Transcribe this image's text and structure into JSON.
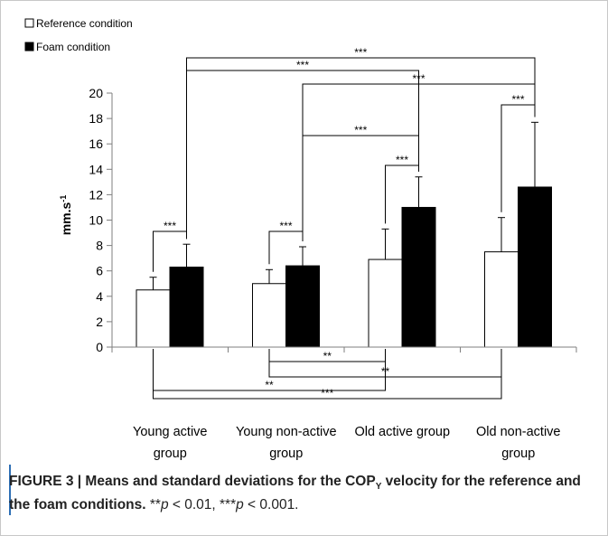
{
  "chart_data": {
    "type": "bar",
    "title": "",
    "xlabel": "",
    "ylabel": "mm.s",
    "ylabel_sup": "-1",
    "ylim": [
      0,
      20
    ],
    "yticks": [
      "0",
      "2",
      "4",
      "6",
      "8",
      "10",
      "12",
      "14",
      "16",
      "18",
      "20"
    ],
    "grid": false,
    "legend_position": "top-left",
    "categories": [
      [
        "Young active",
        "group"
      ],
      [
        "Young non-active",
        "group"
      ],
      [
        "Old active group"
      ],
      [
        "Old non-active",
        "group"
      ]
    ],
    "series": [
      {
        "name": "Reference condition",
        "fill": "#ffffff",
        "values": [
          4.5,
          5.0,
          6.9,
          7.5
        ],
        "sd": [
          1.0,
          1.1,
          2.4,
          2.7
        ]
      },
      {
        "name": "Foam condition",
        "fill": "#000000",
        "values": [
          6.3,
          6.4,
          11.0,
          12.6
        ],
        "sd": [
          1.8,
          1.5,
          2.4,
          5.1
        ]
      }
    ],
    "significance_above": [
      {
        "from": [
          0,
          0
        ],
        "to": [
          0,
          1
        ],
        "label": "***"
      },
      {
        "from": [
          1,
          0
        ],
        "to": [
          1,
          1
        ],
        "label": "***"
      },
      {
        "from": [
          2,
          0
        ],
        "to": [
          2,
          1
        ],
        "label": "***"
      },
      {
        "from": [
          3,
          0
        ],
        "to": [
          3,
          1
        ],
        "label": "***"
      },
      {
        "from": [
          1,
          1
        ],
        "to": [
          2,
          1
        ],
        "label": "***"
      },
      {
        "from": [
          1,
          1
        ],
        "to": [
          3,
          1
        ],
        "label": "***"
      },
      {
        "from": [
          0,
          1
        ],
        "to": [
          2,
          1
        ],
        "label": "***"
      },
      {
        "from": [
          0,
          1
        ],
        "to": [
          3,
          1
        ],
        "label": "***"
      }
    ],
    "significance_below": [
      {
        "from": [
          1,
          0
        ],
        "to": [
          2,
          0
        ],
        "label": "**"
      },
      {
        "from": [
          1,
          0
        ],
        "to": [
          3,
          0
        ],
        "label": "**"
      },
      {
        "from": [
          0,
          0
        ],
        "to": [
          2,
          0
        ],
        "label": "**"
      },
      {
        "from": [
          0,
          0
        ],
        "to": [
          3,
          0
        ],
        "label": "***"
      }
    ]
  },
  "caption": {
    "label": "FIGURE 3 | Means and standard deviations for the COP",
    "sub": "Y",
    "rest": " velocity for the reference and the foam conditions.",
    "note_1_stars": " **",
    "note_1_p": "p",
    "note_1_value": " < 0.01, ***",
    "note_2_p": "p",
    "note_2_value": " < 0.001."
  }
}
